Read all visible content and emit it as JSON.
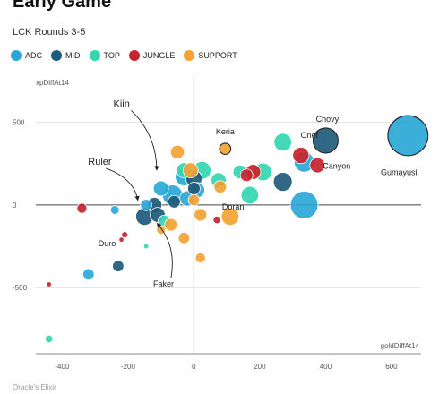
{
  "chart_data": {
    "type": "scatter",
    "title": "Early Game",
    "subtitle": "LCK Rounds 3-5",
    "xlabel": "goldDiffAt14",
    "ylabel": "xpDiffAt14",
    "xlim": [
      -480,
      690
    ],
    "ylim": [
      -900,
      780
    ],
    "x_ticks": [
      -400,
      -200,
      0,
      200,
      400,
      600
    ],
    "y_ticks": [
      500,
      0,
      -500
    ],
    "grid": "horizontal",
    "legend_placement": "top-left",
    "source": "Oracle's Elixir",
    "series": [
      {
        "name": "ADC",
        "color": "#2aa7d6",
        "points": [
          {
            "x": 650,
            "y": 420,
            "s": 3.2
          },
          {
            "x": 335,
            "y": 260,
            "s": 1.6
          },
          {
            "x": 335,
            "y": 0,
            "s": 2.2
          },
          {
            "x": -65,
            "y": 60,
            "s": 1.6
          },
          {
            "x": -30,
            "y": 170,
            "s": 1.4
          },
          {
            "x": -100,
            "y": 100,
            "s": 1.2
          },
          {
            "x": -20,
            "y": 40,
            "s": 1.2
          },
          {
            "x": -145,
            "y": 0,
            "s": 0.9
          },
          {
            "x": -320,
            "y": -420,
            "s": 0.9
          },
          {
            "x": -240,
            "y": -30,
            "s": 0.7
          },
          {
            "x": 10,
            "y": 90,
            "s": 1.2
          }
        ]
      },
      {
        "name": "MID",
        "color": "#1e5a7a",
        "points": [
          {
            "x": 400,
            "y": 390,
            "s": 2.0
          },
          {
            "x": 270,
            "y": 140,
            "s": 1.5
          },
          {
            "x": 0,
            "y": 160,
            "s": 1.3
          },
          {
            "x": -120,
            "y": 0,
            "s": 1.2
          },
          {
            "x": -110,
            "y": -60,
            "s": 1.2
          },
          {
            "x": -230,
            "y": -370,
            "s": 0.9
          },
          {
            "x": -60,
            "y": 20,
            "s": 1.0
          },
          {
            "x": -150,
            "y": -70,
            "s": 1.4
          },
          {
            "x": 0,
            "y": 100,
            "s": 1.0
          }
        ]
      },
      {
        "name": "TOP",
        "color": "#33d6b0",
        "points": [
          {
            "x": 270,
            "y": 380,
            "s": 1.4
          },
          {
            "x": 170,
            "y": 60,
            "s": 1.4
          },
          {
            "x": 25,
            "y": 210,
            "s": 1.4
          },
          {
            "x": -30,
            "y": 210,
            "s": 1.2
          },
          {
            "x": 75,
            "y": 150,
            "s": 1.2
          },
          {
            "x": -440,
            "y": -810,
            "s": 0.6
          },
          {
            "x": 210,
            "y": 200,
            "s": 1.4
          },
          {
            "x": -145,
            "y": -250,
            "s": 0.4
          },
          {
            "x": 140,
            "y": 200,
            "s": 1.1
          },
          {
            "x": -90,
            "y": -100,
            "s": 1.0
          }
        ]
      },
      {
        "name": "JUNGLE",
        "color": "#c8232c",
        "points": [
          {
            "x": 325,
            "y": 300,
            "s": 1.3
          },
          {
            "x": 375,
            "y": 240,
            "s": 1.2
          },
          {
            "x": 180,
            "y": 200,
            "s": 1.2
          },
          {
            "x": 160,
            "y": 180,
            "s": 1.0
          },
          {
            "x": -340,
            "y": -20,
            "s": 0.8
          },
          {
            "x": 70,
            "y": -90,
            "s": 0.6
          },
          {
            "x": -440,
            "y": -480,
            "s": 0.4
          },
          {
            "x": -210,
            "y": -180,
            "s": 0.5
          },
          {
            "x": -220,
            "y": -210,
            "s": 0.4
          }
        ]
      },
      {
        "name": "SUPPORT",
        "color": "#f3a233",
        "points": [
          {
            "x": 95,
            "y": 340,
            "s": 0.9
          },
          {
            "x": -50,
            "y": 320,
            "s": 1.1
          },
          {
            "x": 110,
            "y": -70,
            "s": 1.4
          },
          {
            "x": -10,
            "y": 210,
            "s": 1.2
          },
          {
            "x": 80,
            "y": 110,
            "s": 1.0
          },
          {
            "x": 20,
            "y": -60,
            "s": 1.0
          },
          {
            "x": -30,
            "y": -200,
            "s": 0.9
          },
          {
            "x": 20,
            "y": -320,
            "s": 0.8
          },
          {
            "x": -70,
            "y": -120,
            "s": 1.0
          },
          {
            "x": -100,
            "y": -150,
            "s": 0.7
          },
          {
            "x": 0,
            "y": 30,
            "s": 0.9
          }
        ]
      }
    ],
    "annotations": [
      {
        "text": "Gumayusi",
        "x": 650,
        "y": 420,
        "dx": -10,
        "dy": 44,
        "anchor": "middle",
        "size": "small"
      },
      {
        "text": "Chovy",
        "x": 400,
        "y": 390,
        "dx": 2,
        "dy": -21,
        "anchor": "middle",
        "size": "small"
      },
      {
        "text": "Oner",
        "x": 270,
        "y": 380,
        "dx": 20,
        "dy": -5,
        "anchor": "start",
        "size": "small"
      },
      {
        "text": "Keria",
        "x": 95,
        "y": 340,
        "dx": 0,
        "dy": -16,
        "anchor": "middle",
        "size": "small"
      },
      {
        "text": "Canyon",
        "x": 375,
        "y": 240,
        "dx": 6,
        "dy": 4,
        "anchor": "start",
        "size": "small"
      },
      {
        "text": "Doran",
        "x": 170,
        "y": 60,
        "dx": -31,
        "dy": 16,
        "anchor": "start",
        "size": "small"
      },
      {
        "text": "Duro",
        "x": -210,
        "y": -180,
        "dx": -10,
        "dy": 13,
        "anchor": "end",
        "size": "small"
      },
      {
        "text": "Kiin",
        "x": -95,
        "y": 160,
        "dx": -55,
        "dy": -80,
        "anchor": "start",
        "size": "big",
        "arrow": true
      },
      {
        "text": "Ruler",
        "x": -150,
        "y": 0,
        "dx": -63,
        "dy": -45,
        "anchor": "start",
        "size": "big",
        "arrow": true
      },
      {
        "text": "Faker",
        "x": -110,
        "y": -60,
        "dx": -5,
        "dy": 80,
        "anchor": "start",
        "size": "small",
        "arrow": true
      }
    ]
  }
}
